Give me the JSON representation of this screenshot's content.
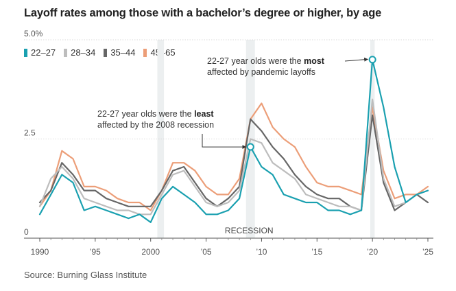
{
  "title": "Layoff rates among those with a bachelor’s degree or higher, by age",
  "source": "Source: Burning Glass Institute",
  "colors": {
    "22-27": "#1aa0b0",
    "28-34": "#bdbdbd",
    "35-44": "#666666",
    "45-65": "#ec9e78",
    "recession_band": "#eceff0",
    "grid": "#d0d0d0",
    "axis_text": "#555555"
  },
  "annotations": {
    "most": {
      "pre": "22-27 year olds were the",
      "bold": "most",
      "line2": "affected by pandemic layoffs",
      "x": 2020,
      "y": 4.5
    },
    "least": {
      "pre": "22-27 year olds were the",
      "bold": "least",
      "line2": "affected by the 2008 recession",
      "x": 2009,
      "y": 2.3
    }
  },
  "recession_label": "RECESSION",
  "chart_data": {
    "type": "line",
    "title": "Layoff rates among those with a bachelor’s degree or higher, by age",
    "xlabel": "",
    "ylabel": "",
    "xlim": [
      1990,
      2025
    ],
    "ylim": [
      0,
      5.0
    ],
    "y_ticks": [
      0,
      2.5,
      5.0
    ],
    "y_tick_labels": [
      "0",
      "2.5",
      "5.0%"
    ],
    "x_ticks": [
      1990,
      1995,
      2000,
      2005,
      2010,
      2015,
      2020,
      2025
    ],
    "x_tick_labels": [
      "1990",
      "’95",
      "2000",
      "’05",
      "’10",
      "’15",
      "’20",
      "’25"
    ],
    "recessions": [
      [
        2000.6,
        2001.2
      ],
      [
        2008.6,
        2009.4
      ],
      [
        2019.8,
        2020.2
      ]
    ],
    "x": [
      1990,
      1991,
      1992,
      1993,
      1994,
      1995,
      1996,
      1997,
      1998,
      1999,
      2000,
      2001,
      2002,
      2003,
      2004,
      2005,
      2006,
      2007,
      2008,
      2009,
      2010,
      2011,
      2012,
      2013,
      2014,
      2015,
      2016,
      2017,
      2018,
      2019,
      2020,
      2021,
      2022,
      2023,
      2024,
      2025
    ],
    "series": [
      {
        "name": "22–27",
        "key": "22-27",
        "values": [
          0.6,
          1.1,
          1.6,
          1.4,
          0.7,
          0.8,
          0.7,
          0.6,
          0.5,
          0.6,
          0.4,
          1.0,
          1.3,
          1.1,
          0.9,
          0.6,
          0.6,
          0.7,
          1.0,
          2.3,
          1.8,
          1.6,
          1.1,
          1.0,
          0.9,
          0.9,
          0.7,
          0.7,
          0.6,
          0.7,
          4.5,
          3.3,
          1.8,
          0.9,
          1.1,
          1.2
        ]
      },
      {
        "name": "28–34",
        "key": "28-34",
        "values": [
          0.8,
          1.5,
          1.8,
          1.5,
          1.0,
          0.9,
          0.8,
          0.7,
          0.7,
          0.6,
          0.6,
          1.1,
          1.6,
          1.7,
          1.3,
          0.9,
          0.8,
          0.9,
          1.2,
          2.5,
          2.4,
          1.9,
          1.7,
          1.5,
          1.1,
          1.0,
          0.9,
          0.8,
          0.8,
          0.7,
          3.5,
          1.5,
          0.8,
          0.9,
          1.1,
          1.2
        ]
      },
      {
        "name": "35–44",
        "key": "35-44",
        "values": [
          0.9,
          1.2,
          1.9,
          1.6,
          1.2,
          1.2,
          1.0,
          0.9,
          0.8,
          0.8,
          0.8,
          1.2,
          1.7,
          1.8,
          1.4,
          1.0,
          0.8,
          1.0,
          1.3,
          3.0,
          2.7,
          2.3,
          2.0,
          1.6,
          1.3,
          1.1,
          1.0,
          1.0,
          0.8,
          0.7,
          3.1,
          1.4,
          0.7,
          0.9,
          1.1,
          0.9
        ]
      },
      {
        "name": "45–65",
        "key": "45-65",
        "values": [
          0.8,
          1.2,
          2.2,
          2.0,
          1.3,
          1.3,
          1.2,
          1.0,
          0.9,
          0.9,
          0.7,
          1.2,
          1.9,
          1.9,
          1.7,
          1.3,
          1.1,
          1.1,
          1.5,
          3.0,
          3.4,
          2.8,
          2.5,
          2.3,
          1.8,
          1.4,
          1.3,
          1.3,
          1.2,
          1.1,
          3.3,
          1.7,
          1.0,
          1.1,
          1.1,
          1.3
        ]
      }
    ],
    "legend_position": "top-left",
    "grid": "horizontal"
  }
}
